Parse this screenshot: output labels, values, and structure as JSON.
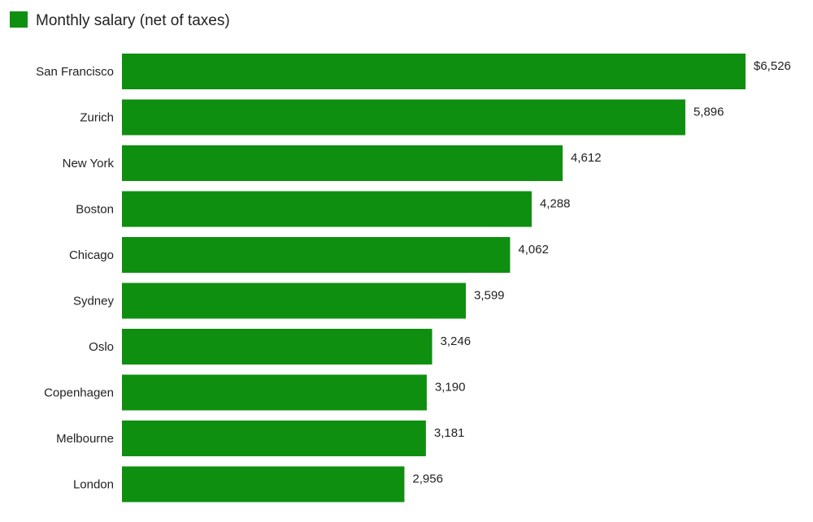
{
  "chart_data": {
    "type": "bar",
    "orientation": "horizontal",
    "legend": {
      "position": "top-left"
    },
    "series": [
      {
        "name": "Monthly salary (net of taxes)",
        "color": "#0f8f0f",
        "values": [
          6526,
          5896,
          4612,
          4288,
          4062,
          3599,
          3246,
          3190,
          3181,
          2956
        ],
        "value_labels": [
          "$6,526",
          "5,896",
          "4,612",
          "4,288",
          "4,062",
          "3,599",
          "3,246",
          "3,190",
          "3,181",
          "2,956"
        ]
      }
    ],
    "categories": [
      "San Francisco",
      "Zurich",
      "New York",
      "Boston",
      "Chicago",
      "Sydney",
      "Oslo",
      "Copenhagen",
      "Melbourne",
      "London"
    ],
    "xlim": [
      0,
      6526
    ],
    "grid": false
  }
}
